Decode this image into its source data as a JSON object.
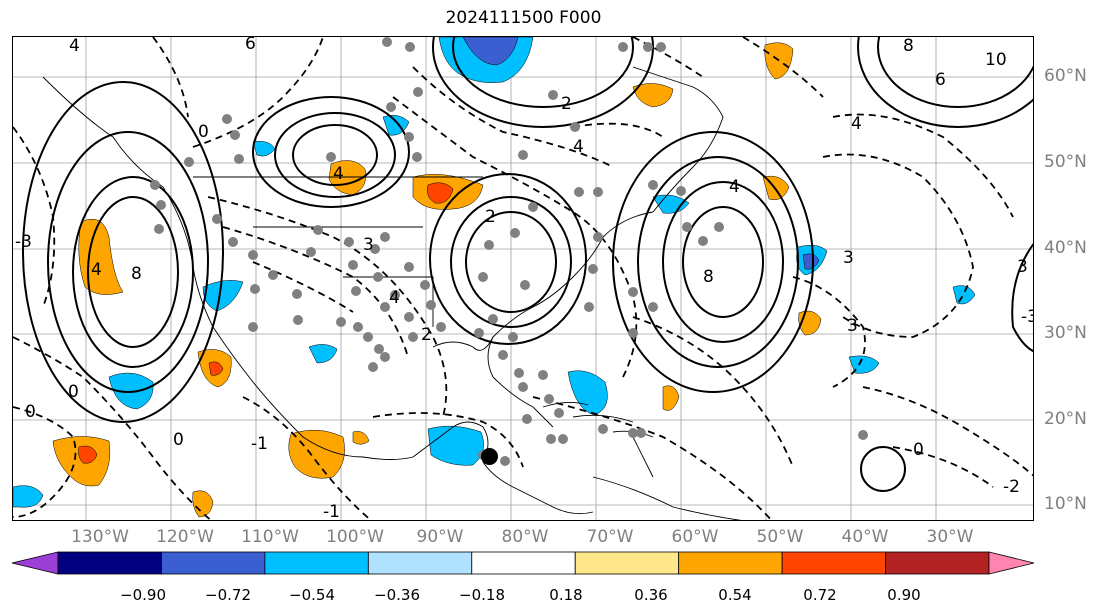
{
  "title": "2024111500 F000",
  "lat_labels": [
    "60°N",
    "50°N",
    "40°N",
    "30°N",
    "20°N",
    "10°N"
  ],
  "lon_labels": [
    "130°W",
    "120°W",
    "110°W",
    "100°W",
    "90°W",
    "80°W",
    "70°W",
    "60°W",
    "50°W",
    "40°W",
    "30°W"
  ],
  "colorbar": {
    "ticks": [
      "−0.90",
      "−0.72",
      "−0.54",
      "−0.36",
      "−0.18",
      "0.18",
      "0.36",
      "0.54",
      "0.72",
      "0.90"
    ],
    "colors": [
      "#9c3fd6",
      "#000080",
      "#3b5fd1",
      "#00bfff",
      "#b0e2ff",
      "#ffffff",
      "#ffe88c",
      "#ffa500",
      "#ff4500",
      "#b22222",
      "#ff85b0"
    ]
  },
  "contour_labels": [
    "4",
    "4",
    "4",
    "6",
    "10",
    "4",
    "8",
    "0",
    "6",
    "4",
    "3",
    "3",
    "2",
    "2",
    "4",
    "4",
    "2",
    "8",
    "8",
    "3",
    "-3",
    "0",
    "0",
    "0",
    "0",
    "-1",
    "-1",
    "-2",
    "3",
    "-3"
  ],
  "shading_colors": {
    "orange": "#ffa500",
    "red": "#ff4500",
    "cyan": "#00bfff",
    "blue": "#3b5fd1",
    "light_blue": "#b0e2ff",
    "gray_dots": "#808080"
  }
}
